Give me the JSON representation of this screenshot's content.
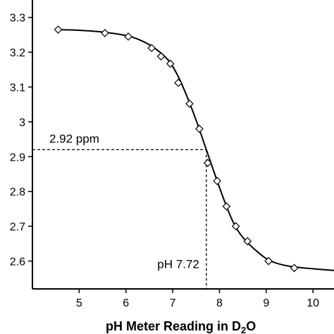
{
  "chart_data": {
    "type": "line",
    "title": "",
    "xlabel_main": "pH Meter Reading in D",
    "xlabel_sub": "2",
    "xlabel_tail": "O",
    "ylabel": "",
    "xlim": [
      4.0,
      10.45
    ],
    "ylim": [
      2.52,
      3.35
    ],
    "x_ticks": [
      5,
      6,
      7,
      8,
      9,
      10
    ],
    "y_ticks": [
      2.6,
      2.7,
      2.8,
      2.9,
      3,
      3.1,
      3.2,
      3.3
    ],
    "grid": false,
    "marker": "diamond-open",
    "points": [
      {
        "x": 4.55,
        "y": 3.265
      },
      {
        "x": 5.55,
        "y": 3.255
      },
      {
        "x": 6.05,
        "y": 3.245
      },
      {
        "x": 6.55,
        "y": 3.212
      },
      {
        "x": 6.75,
        "y": 3.188
      },
      {
        "x": 6.95,
        "y": 3.167
      },
      {
        "x": 7.12,
        "y": 3.112
      },
      {
        "x": 7.36,
        "y": 3.052
      },
      {
        "x": 7.57,
        "y": 2.98
      },
      {
        "x": 7.75,
        "y": 2.882
      },
      {
        "x": 7.95,
        "y": 2.83
      },
      {
        "x": 8.15,
        "y": 2.757
      },
      {
        "x": 8.35,
        "y": 2.7
      },
      {
        "x": 8.6,
        "y": 2.657
      },
      {
        "x": 9.05,
        "y": 2.6
      },
      {
        "x": 9.6,
        "y": 2.58
      },
      {
        "x": 10.5,
        "y": 2.573
      }
    ],
    "curve": [
      [
        4.5,
        3.265
      ],
      [
        5.0,
        3.263
      ],
      [
        5.5,
        3.258
      ],
      [
        6.0,
        3.248
      ],
      [
        6.3,
        3.235
      ],
      [
        6.6,
        3.213
      ],
      [
        6.9,
        3.178
      ],
      [
        7.1,
        3.135
      ],
      [
        7.3,
        3.075
      ],
      [
        7.5,
        3.005
      ],
      [
        7.72,
        2.92
      ],
      [
        7.9,
        2.85
      ],
      [
        8.1,
        2.775
      ],
      [
        8.3,
        2.71
      ],
      [
        8.5,
        2.668
      ],
      [
        8.8,
        2.628
      ],
      [
        9.1,
        2.6
      ],
      [
        9.5,
        2.585
      ],
      [
        10.0,
        2.578
      ],
      [
        10.45,
        2.573
      ]
    ],
    "annotations": {
      "y_marker": {
        "label": "2.92 ppm",
        "value": 2.92
      },
      "x_marker": {
        "label": "pH 7.72",
        "value": 7.72
      }
    }
  }
}
